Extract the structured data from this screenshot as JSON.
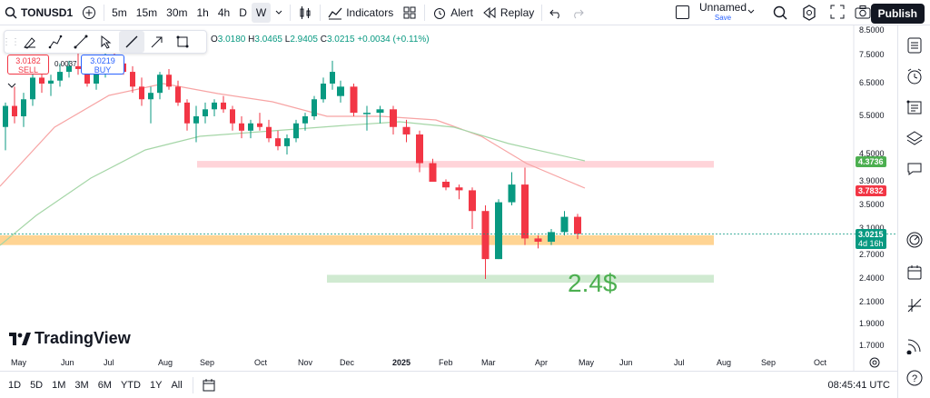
{
  "topbar": {
    "symbol": "TONUSD1",
    "intervals": [
      "5m",
      "15m",
      "30m",
      "1h",
      "4h",
      "D",
      "W"
    ],
    "active_interval": "W",
    "indicators": "Indicators",
    "alert": "Alert",
    "replay": "Replay",
    "layout_name": "Unnamed",
    "save": "Save",
    "publish": "Publish"
  },
  "legend": {
    "o_label": "O",
    "o": "3.0180",
    "h_label": "H",
    "h": "3.0465",
    "l_label": "L",
    "l": "2.9405",
    "c_label": "C",
    "c": "3.0215",
    "change": "+0.0034 (+0.11%)"
  },
  "trade": {
    "sell_price": "3.0182",
    "sell_label": "SELL",
    "spread": "0.0037",
    "buy_price": "3.0219",
    "buy_label": "BUY"
  },
  "annotation": "2.4$",
  "y_axis": [
    "8.5000",
    "7.5000",
    "6.5000",
    "5.5000",
    "4.5000",
    "3.9000",
    "3.5000",
    "3.1000",
    "2.7000",
    "2.4000",
    "2.1000",
    "1.9000",
    "1.7000"
  ],
  "price_tags": {
    "green": "4.3736",
    "red": "3.7832",
    "last": "3.0215",
    "countdown": "4d 16h"
  },
  "x_axis": [
    "May",
    "Jun",
    "Jul",
    "Aug",
    "Sep",
    "Oct",
    "Nov",
    "Dec",
    "2025",
    "Feb",
    "Mar",
    "Apr",
    "May",
    "Jun",
    "Jul",
    "Aug",
    "Sep",
    "Oct"
  ],
  "bottombar": {
    "ranges": [
      "1D",
      "5D",
      "1M",
      "3M",
      "6M",
      "YTD",
      "1Y",
      "All"
    ],
    "time": "08:45:41 UTC"
  },
  "logo": "TradingView",
  "colors": {
    "up": "#089981",
    "down": "#f23645",
    "ma_fast": "#f7a4a4",
    "ma_slow": "#a5d6a7",
    "support_zone": "#ffcc80",
    "resistance_zone": "#ffcdd2",
    "target_zone": "#c8e6c9",
    "target_text": "#4caf50"
  },
  "chart_data": {
    "type": "candlestick",
    "symbol": "TONUSD1",
    "interval": "W",
    "x": [
      "2024-12-23",
      "2024-12-30",
      "2025-01-06",
      "2025-01-13",
      "2025-01-20",
      "2025-01-27",
      "2025-02-03",
      "2025-02-10",
      "2025-02-17",
      "2025-02-24",
      "2025-03-03",
      "2025-03-10",
      "2025-03-17",
      "2025-03-24",
      "2025-03-31",
      "2025-04-07",
      "2025-04-14",
      "2025-04-21",
      "2025-04-28"
    ],
    "ohlc": [
      [
        6.1,
        6.6,
        5.9,
        6.4
      ],
      [
        6.4,
        6.5,
        5.5,
        5.6
      ],
      [
        5.6,
        5.8,
        5.1,
        5.6
      ],
      [
        5.6,
        5.8,
        5.3,
        5.7
      ],
      [
        5.7,
        5.8,
        5.0,
        5.2
      ],
      [
        5.2,
        5.4,
        4.8,
        5.0
      ],
      [
        5.0,
        5.1,
        4.1,
        4.3
      ],
      [
        4.3,
        4.4,
        3.9,
        3.9
      ],
      [
        3.9,
        3.95,
        3.75,
        3.8
      ],
      [
        3.8,
        3.85,
        3.6,
        3.75
      ],
      [
        3.75,
        3.8,
        3.1,
        3.4
      ],
      [
        3.4,
        3.5,
        2.4,
        2.65
      ],
      [
        2.65,
        3.6,
        2.65,
        3.55
      ],
      [
        3.55,
        4.1,
        3.5,
        3.85
      ],
      [
        3.85,
        4.2,
        2.85,
        2.95
      ],
      [
        2.95,
        3.0,
        2.8,
        2.9
      ],
      [
        2.9,
        3.1,
        2.85,
        3.05
      ],
      [
        3.05,
        3.4,
        3.0,
        3.3
      ],
      [
        3.3,
        3.35,
        2.94,
        3.02
      ]
    ],
    "zones": [
      {
        "type": "resistance",
        "low": 4.2,
        "high": 4.35
      },
      {
        "type": "support",
        "low": 2.85,
        "high": 3.0
      },
      {
        "type": "target",
        "low": 2.35,
        "high": 2.45,
        "label": "2.4$"
      }
    ],
    "moving_averages": [
      {
        "color": "red",
        "last": 3.7832
      },
      {
        "color": "green",
        "last": 4.3736
      }
    ],
    "last_price": 3.0215
  }
}
